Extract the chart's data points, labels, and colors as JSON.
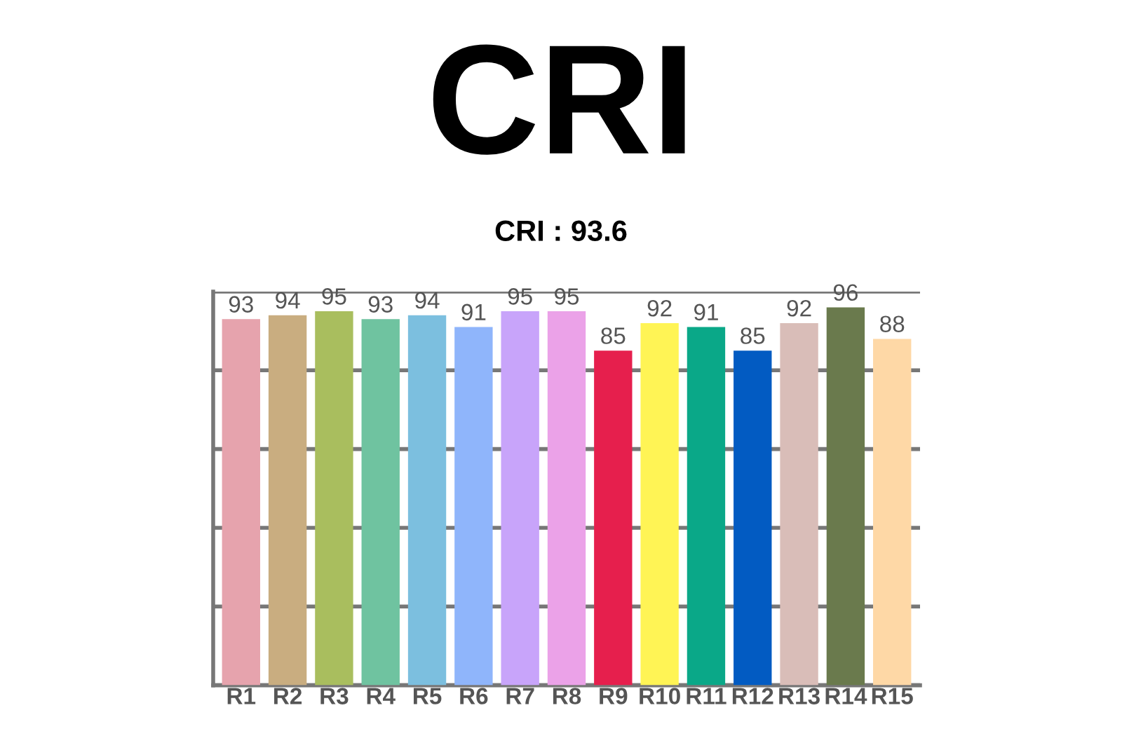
{
  "chart_data": {
    "type": "bar",
    "title": "CRI",
    "subtitle": "CRI : 93.6",
    "categories": [
      "R1",
      "R2",
      "R3",
      "R4",
      "R5",
      "R6",
      "R7",
      "R8",
      "R9",
      "R10",
      "R11",
      "R12",
      "R13",
      "R14",
      "R15"
    ],
    "values": [
      93,
      94,
      95,
      93,
      94,
      91,
      95,
      95,
      85,
      92,
      91,
      85,
      92,
      96,
      88
    ],
    "colors": [
      "#e6a3ad",
      "#c9ad80",
      "#a9be5e",
      "#6fc3a0",
      "#7cbfdf",
      "#8fb5fb",
      "#c8a4fa",
      "#eba2e8",
      "#e61f4d",
      "#fff455",
      "#0aa888",
      "#025bc2",
      "#d9bdb8",
      "#6a7a4d",
      "#fed8a6"
    ],
    "ylim": [
      0,
      100
    ],
    "yticks": [
      {
        "value": 0,
        "label": null
      },
      {
        "value": 20,
        "label": null
      },
      {
        "value": 40,
        "label": null
      },
      {
        "value": 60,
        "label": null
      },
      {
        "value": 80,
        "label": null
      },
      {
        "value": 100,
        "label": null
      }
    ],
    "grid": "y",
    "data_labels": true
  }
}
